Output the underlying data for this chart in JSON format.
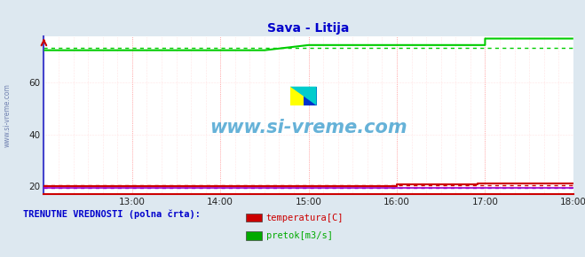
{
  "title": "Sava - Litija",
  "title_color": "#0000cc",
  "bg_color": "#dde8f0",
  "plot_bg_color": "#ffffff",
  "xlim": [
    0,
    360
  ],
  "ylim": [
    17,
    78
  ],
  "yticks": [
    20,
    40,
    60
  ],
  "xtick_labels": [
    "13:00",
    "14:00",
    "15:00",
    "16:00",
    "17:00",
    "18:00"
  ],
  "xtick_positions": [
    60,
    120,
    180,
    240,
    300,
    360
  ],
  "watermark": "www.si-vreme.com",
  "watermark_color": "#3399cc",
  "legend_title": "TRENUTNE VREDNOSTI (polna črta):",
  "legend_items": [
    "temperatura[C]",
    "pretok[m3/s]"
  ],
  "legend_colors": [
    "#cc0000",
    "#00aa00"
  ],
  "pretok_segments": [
    [
      0,
      72.5
    ],
    [
      150,
      72.5
    ],
    [
      150,
      72.5
    ],
    [
      180,
      74.5
    ],
    [
      180,
      74.5
    ],
    [
      300,
      74.5
    ],
    [
      300,
      77.0
    ],
    [
      360,
      77.0
    ]
  ],
  "temperatura_segments": [
    [
      0,
      20.2
    ],
    [
      240,
      20.2
    ],
    [
      240,
      20.8
    ],
    [
      295,
      20.8
    ],
    [
      295,
      21.2
    ],
    [
      360,
      21.2
    ]
  ],
  "visina_y": 19.5,
  "pretok_avg_y": 73.5,
  "temperatura_avg_y": 20.3,
  "visina_avg_y": 19.5,
  "left_axis_color": "#4444cc",
  "bottom_axis_color": "#cc0000",
  "minor_grid_color": "#ffcccc",
  "major_grid_color": "#ff9999"
}
